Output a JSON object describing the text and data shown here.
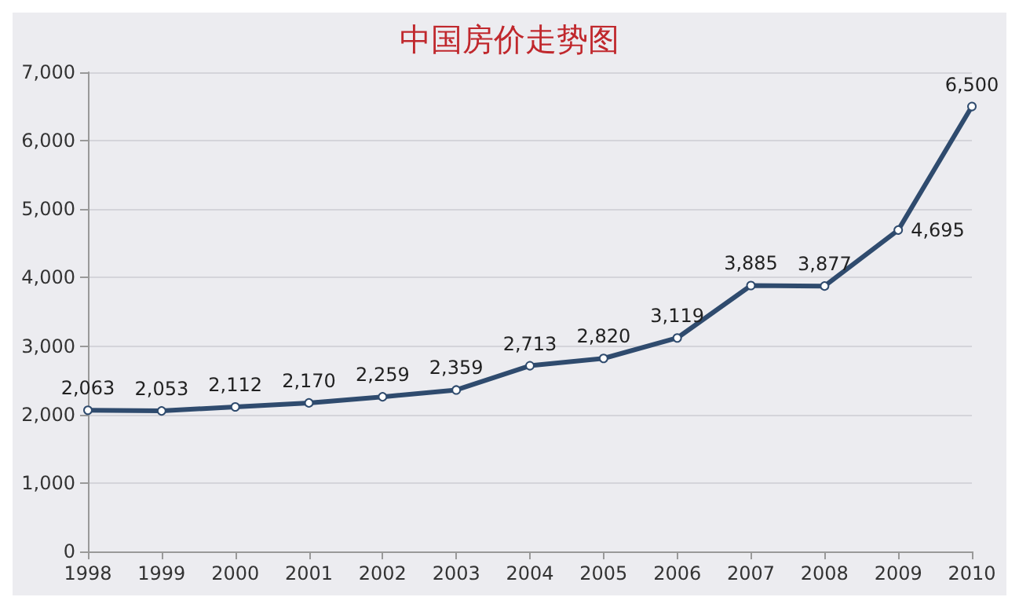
{
  "chart_data": {
    "type": "line",
    "title": "中国房价走势图",
    "categories": [
      "1998",
      "1999",
      "2000",
      "2001",
      "2002",
      "2003",
      "2004",
      "2005",
      "2006",
      "2007",
      "2008",
      "2009",
      "2010"
    ],
    "series": [
      {
        "color": "#2f4b6e",
        "values": [
          2063,
          2053,
          2112,
          2170,
          2259,
          2359,
          2713,
          2820,
          3119,
          3885,
          3877,
          4695,
          6500
        ],
        "value_labels": [
          "2,063",
          "2,053",
          "2,112",
          "2,170",
          "2,259",
          "2,359",
          "2,713",
          "2,820",
          "3,119",
          "3,885",
          "3,877",
          "4,695",
          "6,500"
        ]
      }
    ],
    "ylim": [
      0,
      7000
    ],
    "yticks": [
      {
        "value": 0,
        "label": "0"
      },
      {
        "value": 1000,
        "label": "1,000"
      },
      {
        "value": 2000,
        "label": "2,000"
      },
      {
        "value": 3000,
        "label": "3,000"
      },
      {
        "value": 4000,
        "label": "4,000"
      },
      {
        "value": 5000,
        "label": "5,000"
      },
      {
        "value": 6000,
        "label": "6,000"
      },
      {
        "value": 7000,
        "label": "7,000"
      }
    ],
    "grid": "y",
    "marker": "circle",
    "line_style": "solid"
  }
}
